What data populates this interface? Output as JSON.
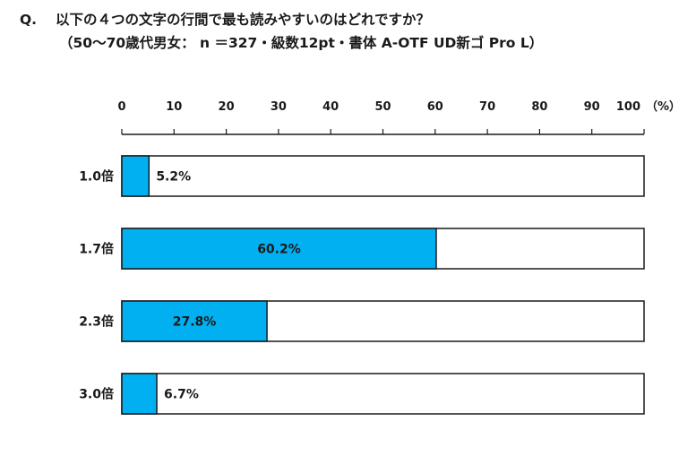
{
  "question": {
    "prefix": "Q.",
    "text": "以下の４つの文字の行間で最も読みやすいのはどれですか？",
    "subtitle": "（50〜70歳代男女： n ＝327・級数12pt・書体 A-OTF UD新ゴ Pro L）"
  },
  "chart_data": {
    "type": "bar",
    "orientation": "horizontal",
    "title": "以下の４つの文字の行間で最も読みやすいのはどれですか？",
    "categories": [
      "1.0倍",
      "1.7倍",
      "2.3倍",
      "3.0倍"
    ],
    "values": [
      5.2,
      60.2,
      27.8,
      6.7
    ],
    "value_labels": [
      "5.2%",
      "60.2%",
      "27.8%",
      "6.7%"
    ],
    "xlim": [
      0,
      100
    ],
    "xticks": [
      0,
      10,
      20,
      30,
      40,
      50,
      60,
      70,
      80,
      90,
      100
    ],
    "xtick_labels": [
      "0",
      "10",
      "20",
      "30",
      "40",
      "50",
      "60",
      "70",
      "80",
      "90",
      "100"
    ],
    "unit_label": "（%）",
    "bar_color": "#00b0f0",
    "track_color": "#ffffff",
    "border_color": "#1a1a1a",
    "legend": "none"
  }
}
